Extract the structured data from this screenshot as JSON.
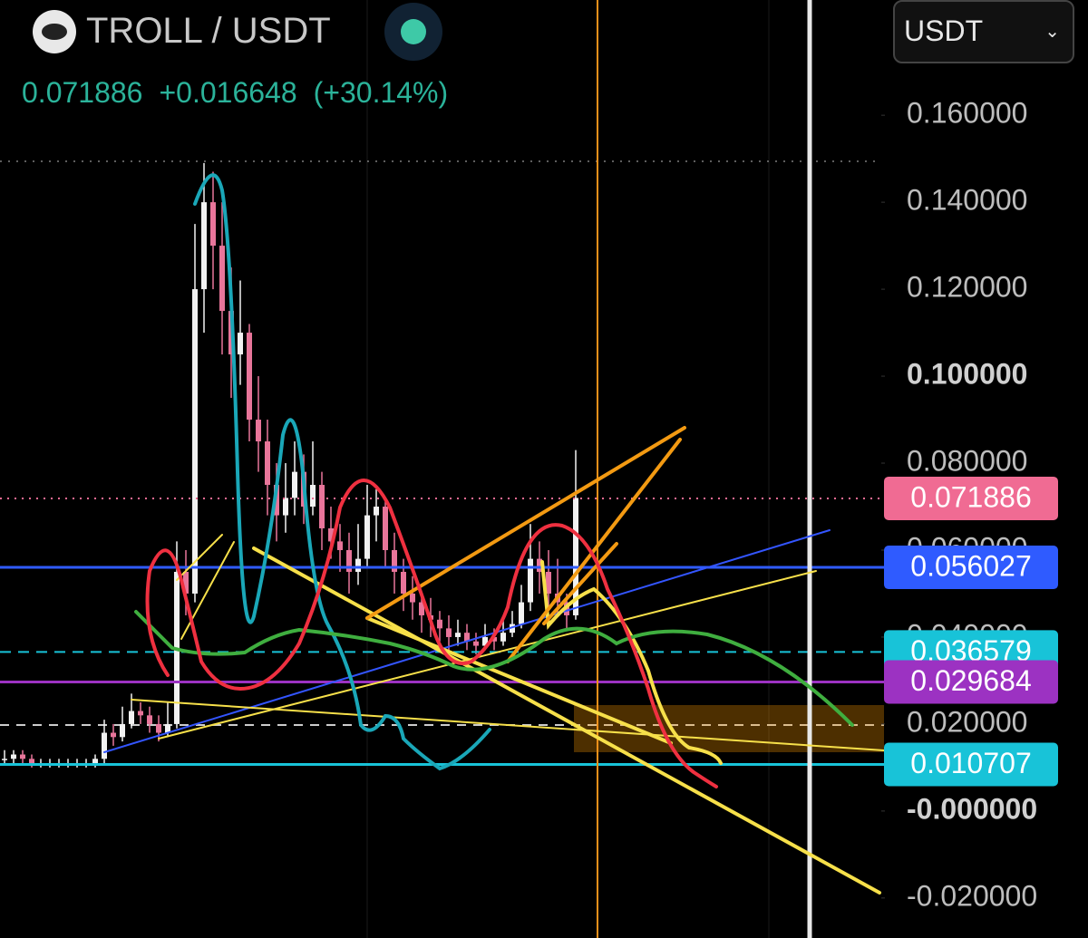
{
  "header": {
    "pair": "TROLL / USDT",
    "price": "0.071886",
    "change": "+0.016648",
    "change_pct": "(+30.14%)"
  },
  "currency_selector": "USDT",
  "chart_data": {
    "type": "candlestick",
    "candles": [
      [
        0.012,
        0.014,
        0.011,
        0.012
      ],
      [
        0.012,
        0.014,
        0.011,
        0.013
      ],
      [
        0.013,
        0.014,
        0.011,
        0.012
      ],
      [
        0.012,
        0.013,
        0.01,
        0.011
      ],
      [
        0.011,
        0.012,
        0.01,
        0.011
      ],
      [
        0.011,
        0.012,
        0.01,
        0.011
      ],
      [
        0.011,
        0.012,
        0.01,
        0.011
      ],
      [
        0.011,
        0.012,
        0.01,
        0.011
      ],
      [
        0.011,
        0.012,
        0.01,
        0.011
      ],
      [
        0.011,
        0.012,
        0.01,
        0.011
      ],
      [
        0.011,
        0.013,
        0.01,
        0.012
      ],
      [
        0.012,
        0.021,
        0.011,
        0.018
      ],
      [
        0.018,
        0.02,
        0.015,
        0.017
      ],
      [
        0.017,
        0.024,
        0.016,
        0.02
      ],
      [
        0.02,
        0.027,
        0.019,
        0.023
      ],
      [
        0.023,
        0.025,
        0.02,
        0.022
      ],
      [
        0.022,
        0.024,
        0.018,
        0.02
      ],
      [
        0.02,
        0.022,
        0.016,
        0.018
      ],
      [
        0.018,
        0.025,
        0.017,
        0.02
      ],
      [
        0.02,
        0.062,
        0.019,
        0.055
      ],
      [
        0.055,
        0.06,
        0.045,
        0.05
      ],
      [
        0.05,
        0.135,
        0.048,
        0.12
      ],
      [
        0.12,
        0.149,
        0.11,
        0.14
      ],
      [
        0.14,
        0.147,
        0.12,
        0.13
      ],
      [
        0.13,
        0.14,
        0.105,
        0.115
      ],
      [
        0.115,
        0.125,
        0.095,
        0.105
      ],
      [
        0.105,
        0.122,
        0.098,
        0.11
      ],
      [
        0.11,
        0.112,
        0.085,
        0.09
      ],
      [
        0.09,
        0.1,
        0.078,
        0.085
      ],
      [
        0.085,
        0.09,
        0.068,
        0.075
      ],
      [
        0.075,
        0.08,
        0.062,
        0.068
      ],
      [
        0.068,
        0.08,
        0.064,
        0.072
      ],
      [
        0.072,
        0.085,
        0.068,
        0.078
      ],
      [
        0.078,
        0.082,
        0.066,
        0.07
      ],
      [
        0.07,
        0.085,
        0.068,
        0.075
      ],
      [
        0.075,
        0.078,
        0.06,
        0.065
      ],
      [
        0.065,
        0.07,
        0.058,
        0.062
      ],
      [
        0.062,
        0.066,
        0.055,
        0.06
      ],
      [
        0.06,
        0.064,
        0.05,
        0.055
      ],
      [
        0.055,
        0.066,
        0.052,
        0.058
      ],
      [
        0.058,
        0.075,
        0.056,
        0.068
      ],
      [
        0.068,
        0.074,
        0.062,
        0.07
      ],
      [
        0.07,
        0.072,
        0.056,
        0.06
      ],
      [
        0.06,
        0.064,
        0.05,
        0.055
      ],
      [
        0.055,
        0.058,
        0.046,
        0.05
      ],
      [
        0.05,
        0.054,
        0.044,
        0.048
      ],
      [
        0.048,
        0.05,
        0.041,
        0.045
      ],
      [
        0.045,
        0.049,
        0.04,
        0.044
      ],
      [
        0.044,
        0.046,
        0.039,
        0.042
      ],
      [
        0.042,
        0.045,
        0.037,
        0.04
      ],
      [
        0.04,
        0.044,
        0.038,
        0.041
      ],
      [
        0.041,
        0.043,
        0.037,
        0.039
      ],
      [
        0.039,
        0.041,
        0.036,
        0.038
      ],
      [
        0.038,
        0.043,
        0.037,
        0.04
      ],
      [
        0.04,
        0.042,
        0.037,
        0.039
      ],
      [
        0.039,
        0.044,
        0.038,
        0.041
      ],
      [
        0.041,
        0.046,
        0.04,
        0.043
      ],
      [
        0.043,
        0.052,
        0.042,
        0.048
      ],
      [
        0.048,
        0.066,
        0.046,
        0.058
      ],
      [
        0.058,
        0.062,
        0.05,
        0.055
      ],
      [
        0.055,
        0.06,
        0.046,
        0.05
      ],
      [
        0.05,
        0.058,
        0.045,
        0.048
      ],
      [
        0.048,
        0.05,
        0.042,
        0.045
      ],
      [
        0.045,
        0.083,
        0.044,
        0.072
      ]
    ],
    "up_color": "#f2f2f2",
    "down_color": "#e8759a",
    "ylim": [
      -0.0292,
      0.1865
    ],
    "yticks": [
      {
        "value": 0.16,
        "label": "0.160000"
      },
      {
        "value": 0.14,
        "label": "0.140000"
      },
      {
        "value": 0.12,
        "label": "0.120000"
      },
      {
        "value": 0.1,
        "label": "0.100000"
      },
      {
        "value": 0.08,
        "label": "0.080000"
      },
      {
        "value": 0.06,
        "label": "0.060000"
      },
      {
        "value": 0.04,
        "label": "0.040000"
      },
      {
        "value": 0.02,
        "label": "0.020000"
      },
      {
        "value": 0,
        "label": "-0.000000"
      },
      {
        "value": -0.02,
        "label": "-0.020000"
      }
    ],
    "price_lines": [
      {
        "value": 0.071886,
        "color": "#f06b93",
        "style": "dotted"
      },
      {
        "value": 0.056027,
        "color": "#2f5bff",
        "style": "solid"
      },
      {
        "value": 0.036579,
        "color": "#18c3d8",
        "style": "dashed"
      },
      {
        "value": 0.029684,
        "color": "#9c32c2",
        "style": "solid"
      },
      {
        "value": 0.010707,
        "color": "#18c3d8",
        "style": "solid"
      }
    ]
  }
}
